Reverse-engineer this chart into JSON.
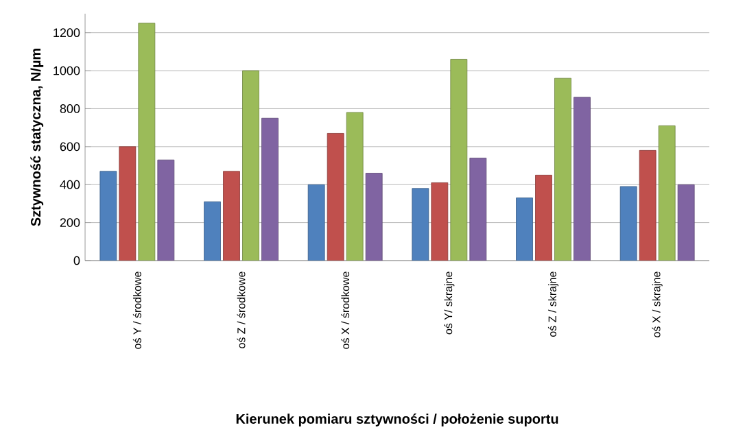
{
  "chart_data": {
    "type": "bar",
    "xlabel": "Kierunek pomiaru sztywności / położenie suportu",
    "ylabel": "Sztywność statyczna, N/µm",
    "categories": [
      "oś Y / środkowe",
      "oś Z / środkowe",
      "oś X / środkowe",
      "oś Y/ skrajne",
      "oś Z / skrajne",
      "oś X / skrajne"
    ],
    "series": [
      {
        "color": "#4f81bd",
        "values": [
          470,
          310,
          400,
          380,
          330,
          390
        ]
      },
      {
        "color": "#c0504d",
        "values": [
          600,
          470,
          670,
          410,
          450,
          580
        ]
      },
      {
        "color": "#9bbb59",
        "values": [
          1250,
          1000,
          780,
          1060,
          960,
          710
        ]
      },
      {
        "color": "#8064a2",
        "values": [
          530,
          750,
          460,
          540,
          860,
          400
        ]
      }
    ],
    "ylim": [
      0,
      1300
    ],
    "yticks": [
      0,
      200,
      400,
      600,
      800,
      1000,
      1200
    ],
    "grid": "y"
  }
}
